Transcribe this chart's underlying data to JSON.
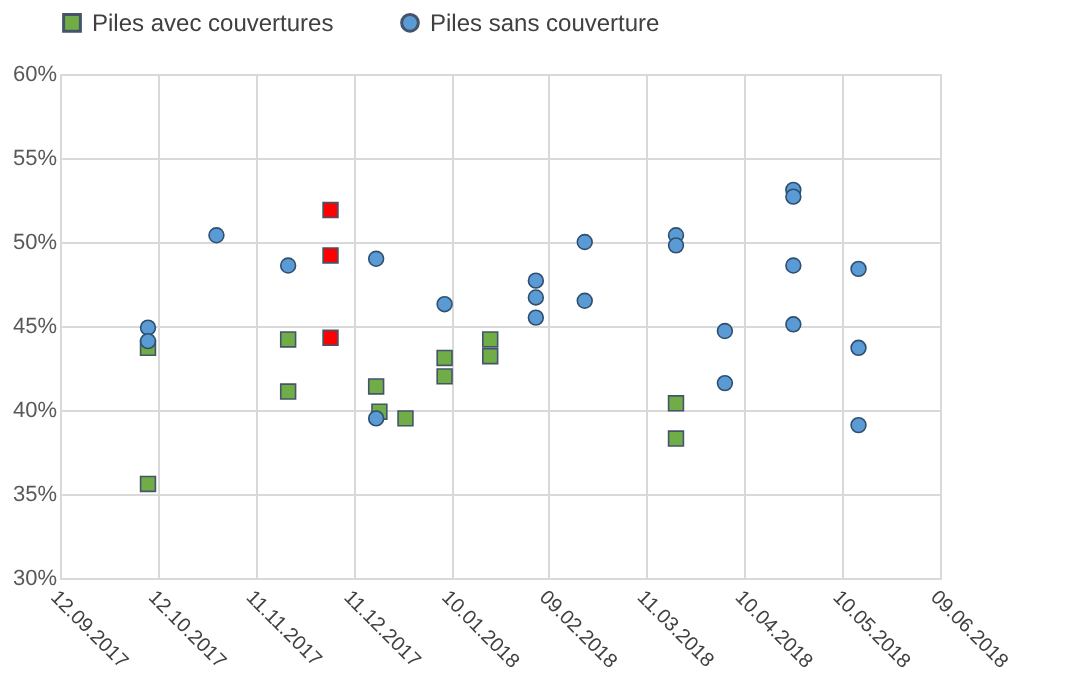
{
  "chart_data": {
    "type": "scatter",
    "xlim": [
      "2017-09-12",
      "2018-06-09"
    ],
    "xticks": [
      {
        "value": "2017-09-12",
        "label": "12.09.2017"
      },
      {
        "value": "2017-10-12",
        "label": "12.10.2017"
      },
      {
        "value": "2017-11-11",
        "label": "11.11.2017"
      },
      {
        "value": "2017-12-11",
        "label": "11.12.2017"
      },
      {
        "value": "2018-01-10",
        "label": "10.01.2018"
      },
      {
        "value": "2018-02-09",
        "label": "09.02.2018"
      },
      {
        "value": "2018-03-11",
        "label": "11.03.2018"
      },
      {
        "value": "2018-04-10",
        "label": "10.04.2018"
      },
      {
        "value": "2018-05-10",
        "label": "10.05.2018"
      },
      {
        "value": "2018-06-09",
        "label": "09.06.2018"
      }
    ],
    "ylim": [
      30,
      60
    ],
    "yticks": [
      {
        "value": 30,
        "label": "30%"
      },
      {
        "value": 35,
        "label": "35%"
      },
      {
        "value": 40,
        "label": "40%"
      },
      {
        "value": 45,
        "label": "45%"
      },
      {
        "value": 50,
        "label": "50%"
      },
      {
        "value": 55,
        "label": "55%"
      },
      {
        "value": 60,
        "label": "60%"
      }
    ],
    "grid": true,
    "legend": "top",
    "series": [
      {
        "name": "Piles avec couvertures",
        "color": "#70ad47",
        "marker": "square",
        "x": [
          "2017-10-09",
          "2017-10-09",
          "2017-11-21",
          "2017-11-21",
          "2017-12-18",
          "2017-12-19",
          "2017-12-27",
          "2018-01-08",
          "2018-01-08",
          "2018-01-22",
          "2018-01-22",
          "2018-03-20",
          "2018-03-20"
        ],
        "values": [
          43.7,
          35.6,
          44.2,
          41.1,
          41.4,
          39.9,
          39.5,
          43.1,
          42.0,
          44.2,
          43.2,
          40.4,
          38.3
        ]
      },
      {
        "color": "#ff0000",
        "marker": "square",
        "x": [
          "2017-12-04",
          "2017-12-04",
          "2017-12-04"
        ],
        "values": [
          51.9,
          49.2,
          44.3
        ]
      },
      {
        "name": "Piles sans couverture",
        "color": "#5b9bd5",
        "marker": "circle",
        "x": [
          "2017-10-09",
          "2017-10-09",
          "2017-10-30",
          "2017-11-21",
          "2017-12-18",
          "2017-12-18",
          "2018-01-08",
          "2018-02-05",
          "2018-02-05",
          "2018-02-05",
          "2018-02-20",
          "2018-02-20",
          "2018-03-20",
          "2018-03-20",
          "2018-04-04",
          "2018-04-04",
          "2018-04-25",
          "2018-04-25",
          "2018-04-25",
          "2018-04-25",
          "2018-05-15",
          "2018-05-15",
          "2018-05-15"
        ],
        "values": [
          44.9,
          44.1,
          50.4,
          48.6,
          49.0,
          39.5,
          46.3,
          47.7,
          46.7,
          45.5,
          50.0,
          46.5,
          50.4,
          49.8,
          44.7,
          41.6,
          53.1,
          52.7,
          48.6,
          45.1,
          48.4,
          43.7,
          39.1
        ]
      }
    ]
  }
}
